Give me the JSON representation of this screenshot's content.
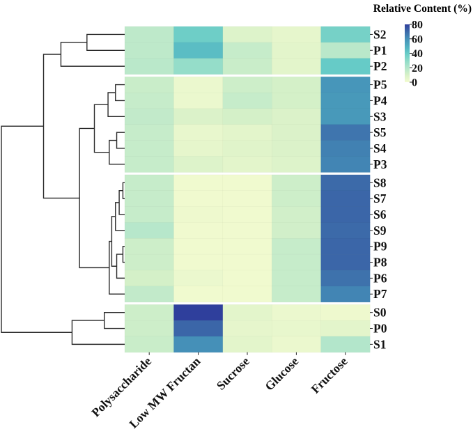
{
  "chart_data": {
    "type": "heatmap",
    "title": "",
    "colorbar": {
      "title": "Relative Content (%)",
      "range": [
        0,
        80
      ],
      "ticks": [
        "80",
        "60",
        "40",
        "20",
        "0"
      ],
      "tick_values": [
        80,
        60,
        40,
        20,
        0
      ],
      "colormap_stops": [
        [
          0,
          "#f3fbd0"
        ],
        [
          10,
          "#d8f1c8"
        ],
        [
          20,
          "#b3e6cb"
        ],
        [
          30,
          "#8edbc8"
        ],
        [
          40,
          "#66cbc7"
        ],
        [
          50,
          "#4faec0"
        ],
        [
          60,
          "#4590b8"
        ],
        [
          70,
          "#3c6aa9"
        ],
        [
          80,
          "#2f3f9c"
        ]
      ]
    },
    "columns": [
      "Polysaccharide",
      "Low MW Fructan",
      "Sucrose",
      "Glucose",
      "Fructose"
    ],
    "row_groups": [
      [
        "S2",
        "P1",
        "P2"
      ],
      [
        "P5",
        "P4",
        "S3",
        "S5",
        "S4",
        "P3"
      ],
      [
        "S8",
        "S7",
        "S6",
        "S9",
        "P9",
        "P8",
        "P6",
        "P7"
      ],
      [
        "S0",
        "P0",
        "S1"
      ]
    ],
    "rows": [
      "S2",
      "P1",
      "P2",
      "P5",
      "P4",
      "S3",
      "S5",
      "S4",
      "P3",
      "S8",
      "S7",
      "S6",
      "S9",
      "P9",
      "P8",
      "P6",
      "P7",
      "S0",
      "P0",
      "S1"
    ],
    "values": [
      [
        17,
        38,
        8,
        5,
        36
      ],
      [
        17,
        45,
        15,
        6,
        18
      ],
      [
        18,
        28,
        14,
        6,
        40
      ],
      [
        14,
        3,
        13,
        11,
        58
      ],
      [
        15,
        3,
        15,
        11,
        57
      ],
      [
        16,
        9,
        11,
        9,
        57
      ],
      [
        15,
        4,
        6,
        9,
        67
      ],
      [
        15,
        5,
        7,
        9,
        64
      ],
      [
        15,
        8,
        6,
        8,
        63
      ],
      [
        15,
        1,
        1,
        13,
        70
      ],
      [
        15,
        1,
        1,
        13,
        71
      ],
      [
        15,
        2,
        1,
        12,
        71
      ],
      [
        19,
        1,
        1,
        12,
        70
      ],
      [
        13,
        1,
        1,
        15,
        71
      ],
      [
        13,
        1,
        1,
        15,
        71
      ],
      [
        11,
        3,
        1,
        15,
        68
      ],
      [
        16,
        1,
        1,
        15,
        63
      ],
      [
        13,
        80,
        6,
        3,
        2
      ],
      [
        13,
        71,
        5,
        4,
        6
      ],
      [
        14,
        60,
        6,
        3,
        20
      ]
    ],
    "dendrogram_rows": {
      "height_units": "relative distance (root = 1)",
      "linkage": [
        [
          "S2",
          "P1",
          0.31,
          "n1"
        ],
        [
          "n1",
          "P2",
          0.52,
          "n2"
        ],
        [
          "P5",
          "P4",
          0.08,
          "n3"
        ],
        [
          "n3",
          "S3",
          0.14,
          "n4"
        ],
        [
          "S5",
          "S4",
          0.07,
          "n5"
        ],
        [
          "n5",
          "P3",
          0.13,
          "n6"
        ],
        [
          "n4",
          "n6",
          0.25,
          "n7"
        ],
        [
          "S8",
          "S7",
          0.02,
          "n8"
        ],
        [
          "n8",
          "S6",
          0.05,
          "n9"
        ],
        [
          "n9",
          "S9",
          0.08,
          "n10"
        ],
        [
          "P9",
          "P8",
          0.02,
          "n11"
        ],
        [
          "n11",
          "P6",
          0.07,
          "n12"
        ],
        [
          "n10",
          "n12",
          0.11,
          "n13"
        ],
        [
          "n13",
          "P7",
          0.13,
          "n14"
        ],
        [
          "n7",
          "n14",
          0.37,
          "n15"
        ],
        [
          "n2",
          "n15",
          0.66,
          "n16"
        ],
        [
          "S0",
          "P0",
          0.17,
          "n17"
        ],
        [
          "n17",
          "S1",
          0.43,
          "n18"
        ],
        [
          "n16",
          "n18",
          1.0,
          "root"
        ]
      ]
    }
  }
}
